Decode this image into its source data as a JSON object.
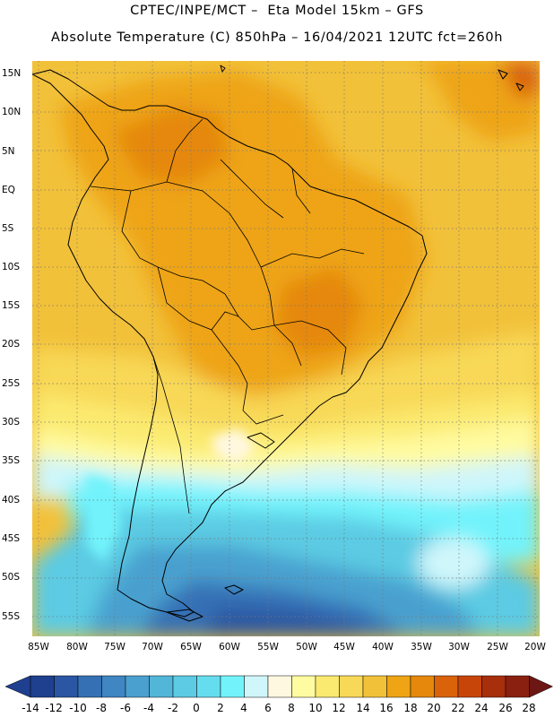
{
  "header": {
    "line1": "CPTEC/INPE/MCT –  Eta Model 15km – GFS",
    "line2": "Absolute Temperature (C) 850hPa – 16/04/2021 12UTC fct=260h"
  },
  "axes": {
    "lat_labels": [
      "15N",
      "10N",
      "5N",
      "EQ",
      "5S",
      "10S",
      "15S",
      "20S",
      "25S",
      "30S",
      "35S",
      "40S",
      "45S",
      "50S",
      "55S"
    ],
    "lon_labels": [
      "85W",
      "80W",
      "75W",
      "70W",
      "65W",
      "60W",
      "55W",
      "50W",
      "45W",
      "40W",
      "35W",
      "30W",
      "25W",
      "20W"
    ]
  },
  "colorbar": {
    "labels": [
      "-14",
      "-12",
      "-10",
      "-8",
      "-6",
      "-4",
      "-2",
      "0",
      "2",
      "4",
      "6",
      "8",
      "10",
      "12",
      "14",
      "16",
      "18",
      "20",
      "22",
      "24",
      "26",
      "28"
    ],
    "colors": [
      "#1f3f8f",
      "#2a56a3",
      "#3570b5",
      "#3f86c2",
      "#4aa0cf",
      "#52b6d8",
      "#5ccbe3",
      "#66ddef",
      "#72f3fb",
      "#cff6fb",
      "#fff8e0",
      "#fffba0",
      "#fbea70",
      "#f8d857",
      "#f2c13a",
      "#eea414",
      "#e5880c",
      "#d9620a",
      "#c8450a",
      "#a72f0c",
      "#8a2010",
      "#6d1714"
    ]
  },
  "legend_colors": {
    "land_border": "#000000",
    "cold": "#1f4fa0",
    "warm": "#eea414"
  }
}
